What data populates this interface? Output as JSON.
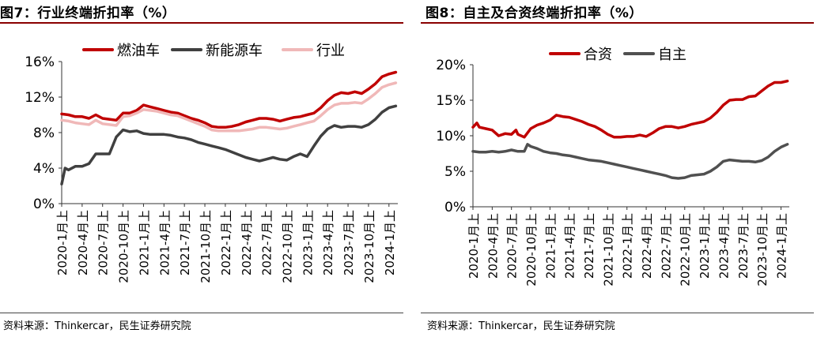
{
  "charts": [
    {
      "panel_title": "图7：行业终端折扣率（%）",
      "source": "资料来源：Thinkercar，民生证券研究院",
      "colors": {
        "燃油车": "#c00000",
        "新能源车": "#404040",
        "行业": "#f0b8b8"
      }
    },
    {
      "panel_title": "图8：自主及合资终端折扣率（%）",
      "source": "资料来源：Thinkercar，民生证券研究院",
      "colors": {
        "合资": "#c00000",
        "自主": "#505050"
      }
    }
  ],
  "chart_data": [
    {
      "type": "line",
      "title": "图7：行业终端折扣率（%）",
      "x": [
        "2020-1月上",
        "2020-4月上",
        "2020-7月上",
        "2020-10月上",
        "2021-1月上",
        "2021-4月上",
        "2021-7月上",
        "2021-10月上",
        "2022-1月上",
        "2022-4月上",
        "2022-7月上",
        "2022-10月上",
        "2023-1月上",
        "2023-4月上",
        "2023-7月上",
        "2023-10月上",
        "2024-1月上"
      ],
      "x_positions": [
        0,
        3,
        6,
        9,
        12,
        15,
        18,
        21,
        24,
        27,
        30,
        33,
        36,
        39,
        42,
        45,
        48
      ],
      "x_max": 49.3,
      "ylim": [
        0,
        16
      ],
      "yticks": [
        0,
        4,
        8,
        12,
        16
      ],
      "ytick_labels": [
        "0%",
        "4%",
        "8%",
        "12%",
        "16%"
      ],
      "grid": false,
      "legend_position": "top",
      "series": [
        {
          "name": "燃油车",
          "points": [
            [
              0,
              10.1
            ],
            [
              1,
              10.0
            ],
            [
              2,
              9.8
            ],
            [
              3,
              9.8
            ],
            [
              4,
              9.6
            ],
            [
              5,
              10.0
            ],
            [
              6,
              9.6
            ],
            [
              7,
              9.5
            ],
            [
              8,
              9.4
            ],
            [
              9,
              10.2
            ],
            [
              10,
              10.2
            ],
            [
              11,
              10.5
            ],
            [
              12,
              11.1
            ],
            [
              13,
              10.9
            ],
            [
              14,
              10.7
            ],
            [
              15,
              10.5
            ],
            [
              16,
              10.3
            ],
            [
              17,
              10.2
            ],
            [
              18,
              9.9
            ],
            [
              19,
              9.6
            ],
            [
              20,
              9.4
            ],
            [
              21,
              9.1
            ],
            [
              22,
              8.7
            ],
            [
              23,
              8.6
            ],
            [
              24,
              8.6
            ],
            [
              25,
              8.7
            ],
            [
              26,
              8.9
            ],
            [
              27,
              9.2
            ],
            [
              28,
              9.4
            ],
            [
              29,
              9.6
            ],
            [
              30,
              9.6
            ],
            [
              31,
              9.5
            ],
            [
              32,
              9.3
            ],
            [
              33,
              9.5
            ],
            [
              34,
              9.7
            ],
            [
              35,
              9.8
            ],
            [
              36,
              10.0
            ],
            [
              37,
              10.2
            ],
            [
              38,
              10.8
            ],
            [
              39,
              11.6
            ],
            [
              40,
              12.2
            ],
            [
              41,
              12.5
            ],
            [
              42,
              12.4
            ],
            [
              43,
              12.6
            ],
            [
              44,
              12.4
            ],
            [
              45,
              12.9
            ],
            [
              46,
              13.5
            ],
            [
              47,
              14.3
            ],
            [
              48,
              14.6
            ],
            [
              49,
              14.8
            ]
          ]
        },
        {
          "name": "新能源车",
          "points": [
            [
              0,
              2.2
            ],
            [
              0.5,
              4.0
            ],
            [
              1,
              3.8
            ],
            [
              2,
              4.2
            ],
            [
              3,
              4.2
            ],
            [
              4,
              4.5
            ],
            [
              5,
              5.6
            ],
            [
              6,
              5.6
            ],
            [
              7,
              5.6
            ],
            [
              8,
              7.5
            ],
            [
              9,
              8.3
            ],
            [
              10,
              8.1
            ],
            [
              11,
              8.2
            ],
            [
              12,
              7.9
            ],
            [
              13,
              7.8
            ],
            [
              14,
              7.8
            ],
            [
              15,
              7.8
            ],
            [
              16,
              7.7
            ],
            [
              17,
              7.5
            ],
            [
              18,
              7.4
            ],
            [
              19,
              7.2
            ],
            [
              20,
              6.9
            ],
            [
              21,
              6.7
            ],
            [
              22,
              6.5
            ],
            [
              23,
              6.3
            ],
            [
              24,
              6.1
            ],
            [
              25,
              5.8
            ],
            [
              26,
              5.5
            ],
            [
              27,
              5.2
            ],
            [
              28,
              5.0
            ],
            [
              29,
              4.8
            ],
            [
              30,
              5.0
            ],
            [
              31,
              5.2
            ],
            [
              32,
              5.0
            ],
            [
              33,
              4.9
            ],
            [
              34,
              5.3
            ],
            [
              35,
              5.6
            ],
            [
              36,
              5.3
            ],
            [
              37,
              6.5
            ],
            [
              38,
              7.6
            ],
            [
              39,
              8.4
            ],
            [
              40,
              8.8
            ],
            [
              41,
              8.6
            ],
            [
              42,
              8.7
            ],
            [
              43,
              8.7
            ],
            [
              44,
              8.6
            ],
            [
              45,
              8.9
            ],
            [
              46,
              9.5
            ],
            [
              47,
              10.3
            ],
            [
              48,
              10.8
            ],
            [
              49,
              11.0
            ]
          ]
        },
        {
          "name": "行业",
          "points": [
            [
              0,
              9.4
            ],
            [
              1,
              9.3
            ],
            [
              2,
              9.1
            ],
            [
              3,
              9.0
            ],
            [
              4,
              8.9
            ],
            [
              5,
              9.4
            ],
            [
              6,
              9.0
            ],
            [
              7,
              8.9
            ],
            [
              8,
              8.8
            ],
            [
              9,
              9.8
            ],
            [
              10,
              9.9
            ],
            [
              11,
              10.2
            ],
            [
              12,
              10.6
            ],
            [
              13,
              10.5
            ],
            [
              14,
              10.4
            ],
            [
              15,
              10.2
            ],
            [
              16,
              10.0
            ],
            [
              17,
              9.9
            ],
            [
              18,
              9.6
            ],
            [
              19,
              9.3
            ],
            [
              20,
              9.0
            ],
            [
              21,
              8.7
            ],
            [
              22,
              8.3
            ],
            [
              23,
              8.2
            ],
            [
              24,
              8.2
            ],
            [
              25,
              8.2
            ],
            [
              26,
              8.2
            ],
            [
              27,
              8.3
            ],
            [
              28,
              8.4
            ],
            [
              29,
              8.6
            ],
            [
              30,
              8.6
            ],
            [
              31,
              8.5
            ],
            [
              32,
              8.4
            ],
            [
              33,
              8.5
            ],
            [
              34,
              8.7
            ],
            [
              35,
              8.9
            ],
            [
              36,
              9.1
            ],
            [
              37,
              9.3
            ],
            [
              38,
              9.9
            ],
            [
              39,
              10.6
            ],
            [
              40,
              11.1
            ],
            [
              41,
              11.3
            ],
            [
              42,
              11.3
            ],
            [
              43,
              11.4
            ],
            [
              44,
              11.3
            ],
            [
              45,
              11.8
            ],
            [
              46,
              12.4
            ],
            [
              47,
              13.1
            ],
            [
              48,
              13.4
            ],
            [
              49,
              13.6
            ]
          ]
        }
      ]
    },
    {
      "type": "line",
      "title": "图8：自主及合资终端折扣率（%）",
      "x": [
        "2020-1月上",
        "2020-4月上",
        "2020-7月上",
        "2020-10月上",
        "2021-1月上",
        "2021-4月上",
        "2021-7月上",
        "2021-10月上",
        "2022-1月上",
        "2022-4月上",
        "2022-7月上",
        "2022-10月上",
        "2023-1月上",
        "2023-4月上",
        "2023-7月上",
        "2023-10月上",
        "2024-1月上"
      ],
      "x_positions": [
        0,
        3,
        6,
        9,
        12,
        15,
        18,
        21,
        24,
        27,
        30,
        33,
        36,
        39,
        42,
        45,
        48
      ],
      "x_max": 49.3,
      "ylim": [
        0,
        20
      ],
      "yticks": [
        0,
        5,
        10,
        15,
        20
      ],
      "ytick_labels": [
        "0%",
        "5%",
        "10%",
        "15%",
        "20%"
      ],
      "grid": false,
      "legend_position": "top",
      "series": [
        {
          "name": "合资",
          "points": [
            [
              0,
              11.2
            ],
            [
              0.6,
              11.8
            ],
            [
              1,
              11.2
            ],
            [
              2,
              11.0
            ],
            [
              3,
              10.8
            ],
            [
              4,
              10.0
            ],
            [
              5,
              10.3
            ],
            [
              6,
              10.2
            ],
            [
              6.7,
              10.8
            ],
            [
              7,
              10.2
            ],
            [
              8,
              9.8
            ],
            [
              9,
              11.0
            ],
            [
              10,
              11.5
            ],
            [
              11,
              11.8
            ],
            [
              12,
              12.2
            ],
            [
              13,
              12.9
            ],
            [
              14,
              12.7
            ],
            [
              15,
              12.6
            ],
            [
              16,
              12.3
            ],
            [
              17,
              12.0
            ],
            [
              18,
              11.6
            ],
            [
              19,
              11.3
            ],
            [
              20,
              10.8
            ],
            [
              21,
              10.2
            ],
            [
              22,
              9.8
            ],
            [
              23,
              9.8
            ],
            [
              24,
              9.9
            ],
            [
              25,
              9.9
            ],
            [
              26,
              10.1
            ],
            [
              27,
              9.9
            ],
            [
              28,
              10.4
            ],
            [
              29,
              11.0
            ],
            [
              30,
              11.3
            ],
            [
              31,
              11.3
            ],
            [
              32,
              11.1
            ],
            [
              33,
              11.3
            ],
            [
              34,
              11.6
            ],
            [
              35,
              11.8
            ],
            [
              36,
              12.0
            ],
            [
              37,
              12.5
            ],
            [
              38,
              13.3
            ],
            [
              39,
              14.3
            ],
            [
              40,
              15.0
            ],
            [
              41,
              15.1
            ],
            [
              42,
              15.1
            ],
            [
              43,
              15.5
            ],
            [
              44,
              15.6
            ],
            [
              45,
              16.3
            ],
            [
              46,
              17.0
            ],
            [
              47,
              17.5
            ],
            [
              48,
              17.5
            ],
            [
              49,
              17.7
            ]
          ]
        },
        {
          "name": "自主",
          "points": [
            [
              0,
              7.8
            ],
            [
              1,
              7.7
            ],
            [
              2,
              7.7
            ],
            [
              3,
              7.8
            ],
            [
              4,
              7.7
            ],
            [
              5,
              7.8
            ],
            [
              6,
              8.0
            ],
            [
              7,
              7.8
            ],
            [
              8,
              7.8
            ],
            [
              8.5,
              8.8
            ],
            [
              9,
              8.5
            ],
            [
              10,
              8.2
            ],
            [
              11,
              7.8
            ],
            [
              12,
              7.6
            ],
            [
              13,
              7.5
            ],
            [
              14,
              7.3
            ],
            [
              15,
              7.2
            ],
            [
              16,
              7.0
            ],
            [
              17,
              6.8
            ],
            [
              18,
              6.6
            ],
            [
              19,
              6.5
            ],
            [
              20,
              6.4
            ],
            [
              21,
              6.2
            ],
            [
              22,
              6.0
            ],
            [
              23,
              5.8
            ],
            [
              24,
              5.6
            ],
            [
              25,
              5.4
            ],
            [
              26,
              5.2
            ],
            [
              27,
              5.0
            ],
            [
              28,
              4.8
            ],
            [
              29,
              4.6
            ],
            [
              30,
              4.4
            ],
            [
              31,
              4.1
            ],
            [
              32,
              4.0
            ],
            [
              33,
              4.1
            ],
            [
              34,
              4.4
            ],
            [
              35,
              4.5
            ],
            [
              36,
              4.6
            ],
            [
              37,
              5.0
            ],
            [
              38,
              5.6
            ],
            [
              39,
              6.4
            ],
            [
              40,
              6.6
            ],
            [
              41,
              6.5
            ],
            [
              42,
              6.4
            ],
            [
              43,
              6.4
            ],
            [
              44,
              6.3
            ],
            [
              45,
              6.5
            ],
            [
              46,
              7.0
            ],
            [
              47,
              7.8
            ],
            [
              48,
              8.4
            ],
            [
              49,
              8.8
            ]
          ]
        }
      ]
    }
  ]
}
